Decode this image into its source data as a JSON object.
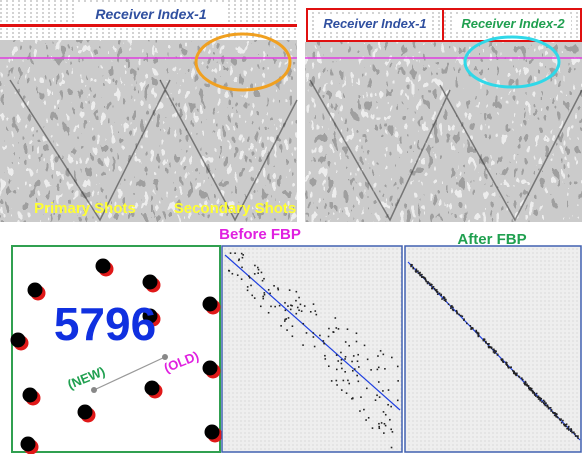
{
  "top_left": {
    "header": "Receiver Index-1",
    "labels": [
      "Primary Shots",
      "Secondary Shots"
    ]
  },
  "top_right": {
    "headers": [
      "Receiver Index-1",
      "Receiver Index-2"
    ]
  },
  "bottom": {
    "before_title": "Before FBP",
    "after_title": "After FBP",
    "count": "5796",
    "new_label": "(NEW)",
    "old_label": "(OLD)"
  }
}
